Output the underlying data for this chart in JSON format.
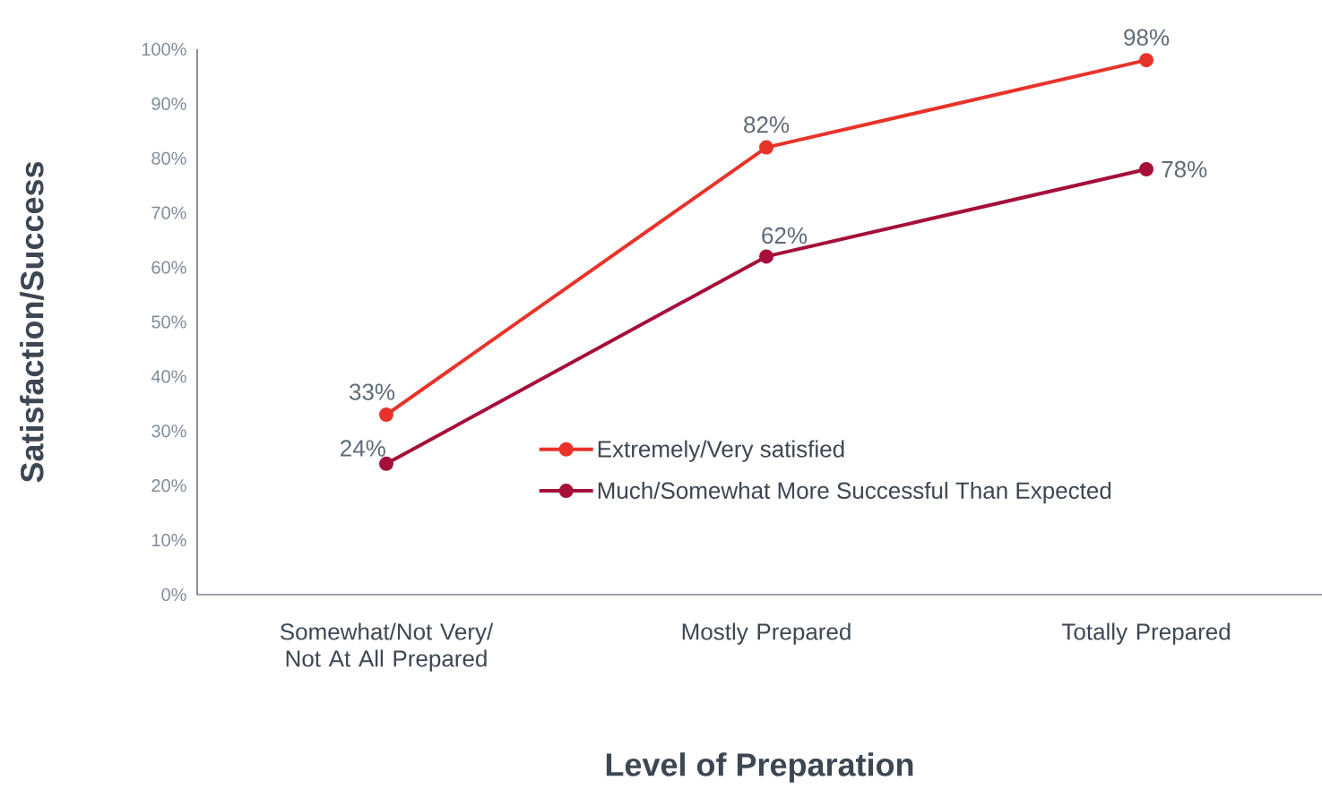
{
  "chart_data": {
    "type": "line",
    "xlabel": "Level of Preparation",
    "ylabel": "Satisfaction/Success",
    "categories": [
      "Somewhat/Not Very/ Not At All Prepared",
      "Mostly Prepared",
      "Totally Prepared"
    ],
    "series": [
      {
        "name": "Extremely/Very satisfied",
        "color": "#e8332a",
        "values": [
          33,
          82,
          98
        ],
        "value_labels": [
          "33%",
          "82%",
          "98%"
        ]
      },
      {
        "name": "Much/Somewhat More Successful Than Expected",
        "color": "#a50f3a",
        "values": [
          24,
          62,
          78
        ],
        "value_labels": [
          "24%",
          "62%",
          "78%"
        ]
      }
    ],
    "ylim": [
      0,
      100
    ],
    "yticks": [
      {
        "value": 0,
        "label": "0%"
      },
      {
        "value": 10,
        "label": "10%"
      },
      {
        "value": 20,
        "label": "20%"
      },
      {
        "value": 30,
        "label": "30%"
      },
      {
        "value": 40,
        "label": "40%"
      },
      {
        "value": 50,
        "label": "50%"
      },
      {
        "value": 60,
        "label": "60%"
      },
      {
        "value": 70,
        "label": "70%"
      },
      {
        "value": 80,
        "label": "80%"
      },
      {
        "value": 90,
        "label": "90%"
      },
      {
        "value": 100,
        "label": "100%"
      }
    ],
    "grid": false,
    "legend": "bottom right",
    "marker": "circle",
    "line_style": "solid"
  }
}
